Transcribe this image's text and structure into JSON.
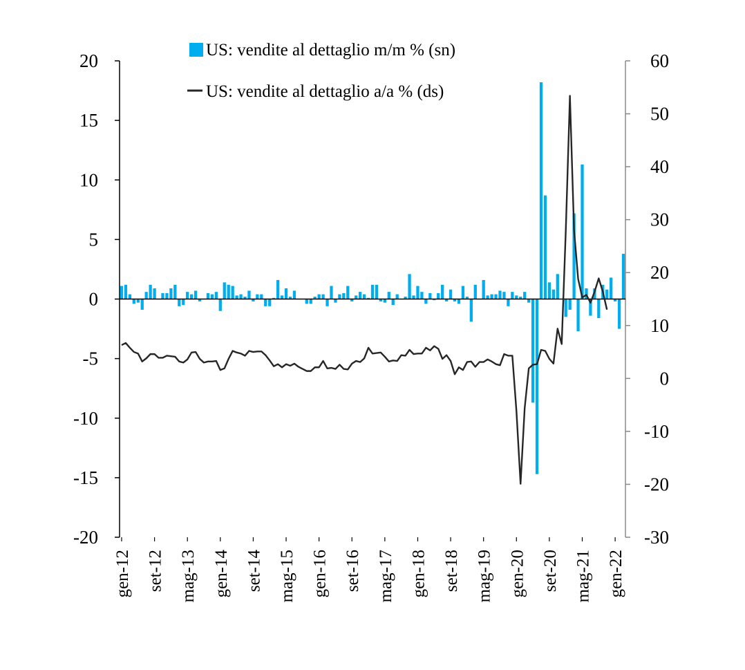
{
  "chart_data": {
    "type": "bar+line",
    "legend": [
      {
        "label": "US: vendite al dettaglio m/m % (sn)",
        "color": "#00AEEF",
        "kind": "bar"
      },
      {
        "label": "US: vendite al dettaglio a/a % (ds)",
        "color": "#262626",
        "kind": "line"
      }
    ],
    "legend_position": "top",
    "grid": false,
    "y_left": {
      "ticks": [
        "20",
        "15",
        "10",
        "5",
        "0",
        "-5",
        "-10",
        "-15",
        "-20"
      ],
      "lim": [
        -20,
        20
      ]
    },
    "y_right": {
      "ticks": [
        "60",
        "50",
        "40",
        "30",
        "20",
        "10",
        "0",
        "-10",
        "-20",
        "-30"
      ],
      "lim": [
        -30,
        60
      ]
    },
    "x_tick_labels": [
      "gen-12",
      "set-12",
      "mag-13",
      "gen-14",
      "set-14",
      "mag-15",
      "gen-16",
      "set-16",
      "mag-17",
      "gen-18",
      "set-18",
      "mag-19",
      "gen-20",
      "set-20",
      "mag-21",
      "gen-22"
    ],
    "x_tick_index": [
      0,
      8,
      16,
      24,
      32,
      40,
      48,
      56,
      64,
      72,
      80,
      88,
      96,
      104,
      112,
      120
    ],
    "series": [
      {
        "name": "US: vendite al dettaglio m/m % (sn)",
        "axis": "left",
        "values": [
          1.1,
          1.2,
          0.4,
          -0.4,
          -0.3,
          -0.9,
          0.6,
          1.2,
          0.9,
          0.0,
          0.5,
          0.5,
          0.9,
          1.2,
          -0.6,
          -0.5,
          0.6,
          0.4,
          0.7,
          -0.2,
          0.0,
          0.5,
          0.4,
          0.6,
          -1.0,
          1.4,
          1.2,
          1.1,
          0.3,
          0.4,
          0.2,
          0.7,
          -0.2,
          0.4,
          0.4,
          -0.6,
          -0.6,
          0.1,
          1.6,
          0.3,
          0.9,
          0.2,
          0.7,
          0.0,
          0.0,
          -0.4,
          -0.4,
          0.2,
          0.4,
          0.4,
          -0.6,
          1.1,
          -0.3,
          0.4,
          0.5,
          1.1,
          -0.2,
          0.3,
          0.6,
          0.4,
          0.1,
          1.2,
          1.2,
          -0.2,
          -0.3,
          0.6,
          -0.5,
          0.4,
          0.0,
          0.2,
          2.1,
          0.3,
          1.1,
          0.6,
          -0.4,
          0.5,
          -0.1,
          0.5,
          1.2,
          -0.2,
          0.8,
          -0.2,
          -0.4,
          1.1,
          0.2,
          -1.9,
          1.2,
          0.0,
          1.6,
          0.3,
          0.4,
          0.4,
          0.7,
          0.6,
          -0.6,
          0.6,
          0.3,
          0.2,
          0.6,
          -0.3,
          -8.7,
          -14.7,
          18.2,
          8.7,
          1.4,
          0.8,
          2.1,
          0.0,
          -1.5,
          -0.9,
          7.2,
          -2.7,
          11.3,
          0.9,
          -1.4,
          0.9,
          -1.6,
          1.2,
          0.8,
          1.8,
          -0.2,
          -2.5,
          3.8
        ]
      },
      {
        "name": "US: vendite al dettaglio a/a % (ds)",
        "axis": "right",
        "values": [
          6.3,
          6.7,
          5.8,
          5.0,
          4.7,
          3.2,
          3.8,
          4.6,
          4.6,
          3.9,
          3.9,
          4.3,
          4.2,
          4.1,
          3.2,
          3.0,
          3.6,
          4.9,
          5.0,
          3.7,
          3.0,
          3.2,
          3.2,
          3.3,
          1.6,
          1.9,
          3.7,
          5.2,
          4.9,
          4.7,
          4.3,
          5.2,
          5.0,
          5.1,
          5.1,
          4.4,
          3.4,
          2.3,
          2.7,
          2.1,
          2.7,
          2.4,
          2.8,
          2.2,
          1.8,
          1.4,
          1.4,
          2.1,
          2.1,
          3.3,
          1.9,
          2.0,
          1.8,
          2.6,
          1.8,
          1.7,
          2.8,
          3.3,
          3.1,
          3.8,
          5.8,
          4.7,
          4.8,
          4.9,
          4.1,
          3.2,
          3.4,
          3.3,
          4.4,
          4.3,
          5.4,
          4.6,
          4.7,
          4.7,
          5.8,
          5.3,
          6.1,
          5.6,
          3.7,
          4.4,
          3.3,
          0.8,
          2.1,
          1.6,
          3.1,
          3.2,
          2.2,
          3.1,
          3.1,
          3.6,
          3.2,
          2.7,
          2.5,
          4.6,
          4.3,
          4.3,
          -6.2,
          -19.9,
          -5.6,
          1.9,
          2.6,
          2.7,
          5.4,
          5.2,
          3.7,
          2.8,
          9.4,
          6.5,
          28.0,
          53.4,
          28.1,
          18.8,
          15.3,
          15.8,
          14.3,
          16.4,
          18.9,
          16.4,
          13.0
        ]
      }
    ]
  }
}
